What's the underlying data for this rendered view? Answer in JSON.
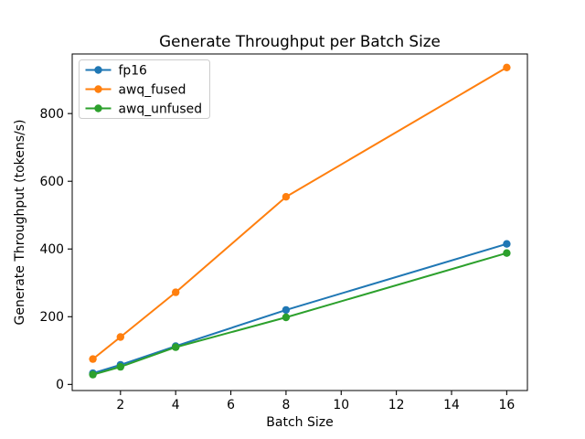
{
  "figure": {
    "background": "#ffffff",
    "spine_color": "#000000",
    "legend_border_color": "#cccccc"
  },
  "chart_data": {
    "type": "line",
    "title": "Generate Throughput per Batch Size",
    "xlabel": "Batch Size",
    "ylabel": "Generate Throughput (tokens/s)",
    "x": [
      1,
      2,
      4,
      8,
      16
    ],
    "series": [
      {
        "name": "fp16",
        "color": "#1f77b4",
        "values": [
          33,
          58,
          113,
          220,
          415
        ]
      },
      {
        "name": "awq_fused",
        "color": "#ff7f0e",
        "values": [
          75,
          140,
          272,
          554,
          936
        ]
      },
      {
        "name": "awq_unfused",
        "color": "#2ca02c",
        "values": [
          29,
          52,
          110,
          198,
          388
        ]
      }
    ],
    "xlim": [
      0.25,
      16.75
    ],
    "ylim": [
      -18,
      976
    ],
    "xticks": [
      2,
      4,
      6,
      8,
      10,
      12,
      14,
      16
    ],
    "yticks": [
      0,
      200,
      400,
      600,
      800
    ],
    "grid": false,
    "legend_position": "upper left",
    "marker": "o"
  }
}
